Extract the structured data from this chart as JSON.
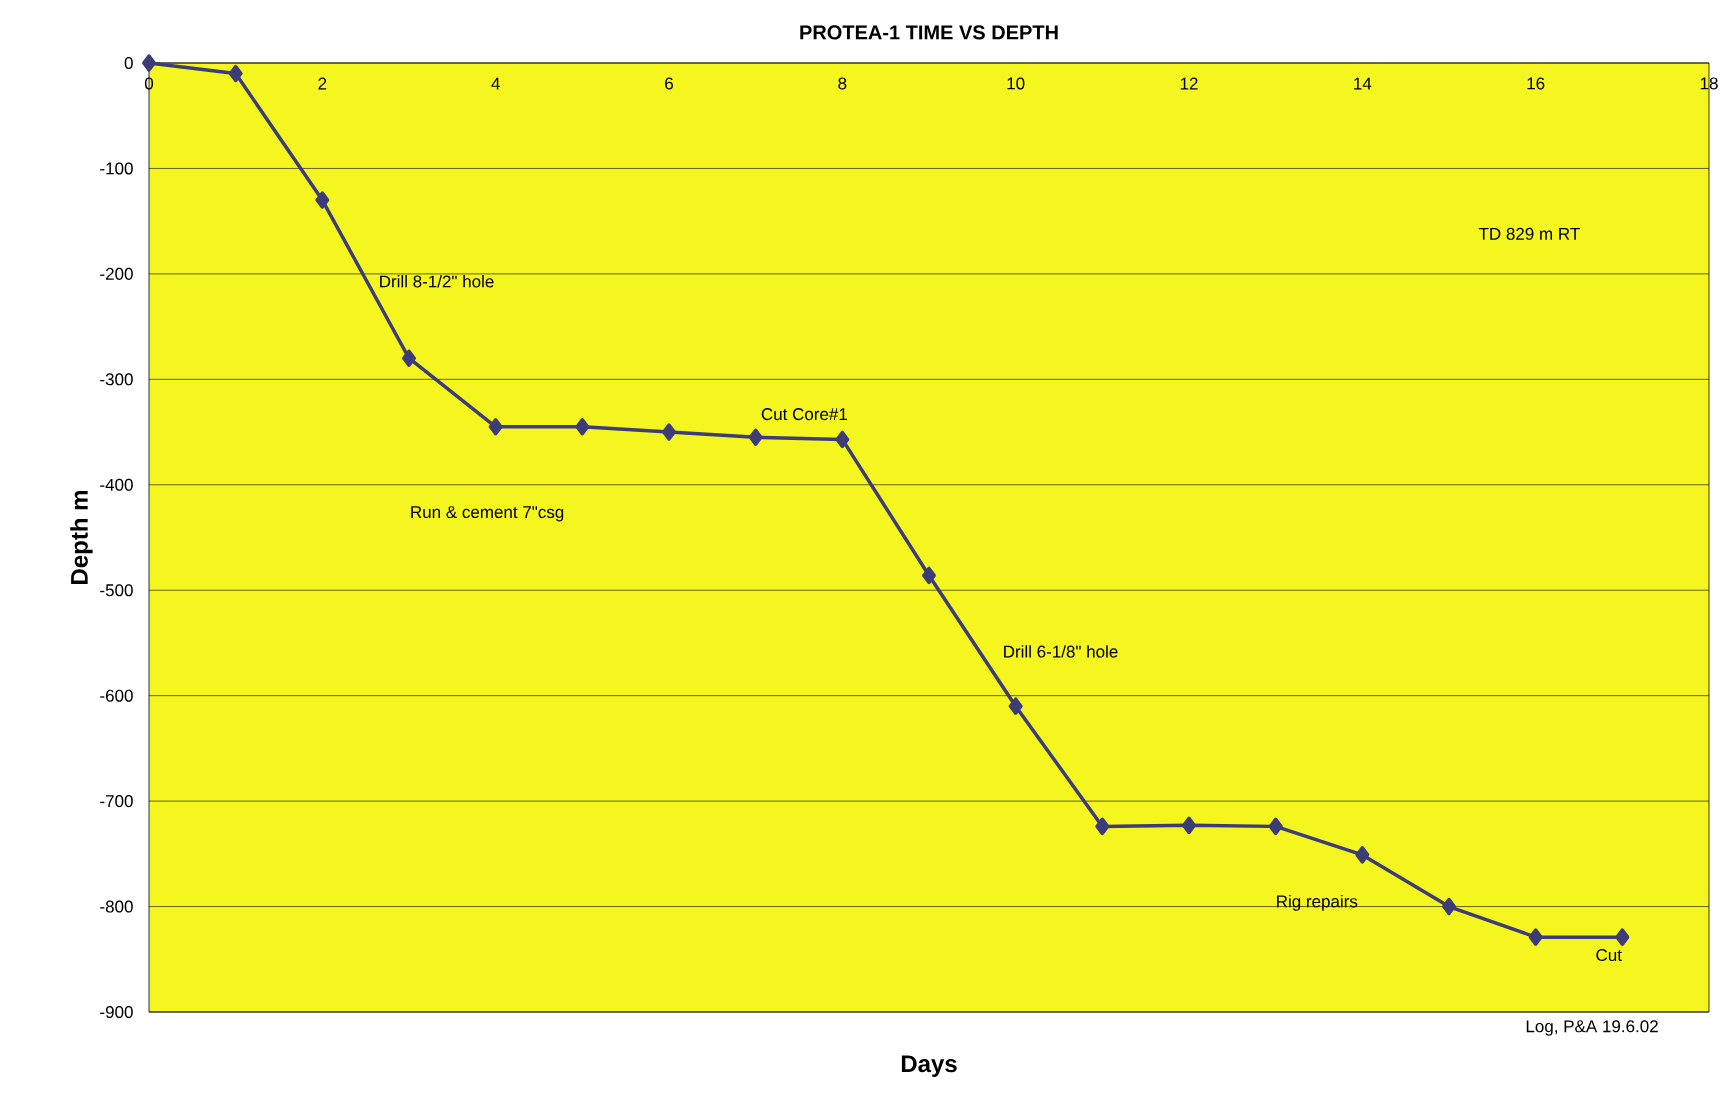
{
  "chart_data": {
    "type": "line",
    "title": "PROTEA-1 TIME VS DEPTH",
    "xlabel": "Days",
    "ylabel": "Depth m",
    "x": [
      0,
      1,
      2,
      3,
      4,
      5,
      6,
      7,
      8,
      9,
      10,
      11,
      12,
      13,
      14,
      15,
      16,
      17
    ],
    "series": [
      {
        "color": "#3c3c78",
        "values": [
          0,
          -10,
          -130,
          -280,
          -345,
          -345,
          -350,
          -355,
          -357,
          -486,
          -610,
          -724,
          -723,
          -724,
          -751,
          -800,
          -829,
          -829
        ]
      }
    ],
    "xlim": [
      0,
      18
    ],
    "xticks": [
      0,
      2,
      4,
      6,
      8,
      10,
      12,
      14,
      16,
      18
    ],
    "ylim": [
      -900,
      0
    ],
    "yticks": [
      -900,
      -800,
      -700,
      -600,
      -500,
      -400,
      -300,
      -200,
      -100,
      0
    ],
    "grid": "y",
    "marker": "diamond",
    "line_style": "solid",
    "annotations": [
      "Drill 8-1/2\" hole",
      "Cut Core#1",
      "Run & cement 7\"csg",
      "Drill 6-1/8\" hole",
      "TD 829 m RT",
      "Rig repairs",
      "Cut",
      "Log, P&A 19.6.02"
    ]
  }
}
